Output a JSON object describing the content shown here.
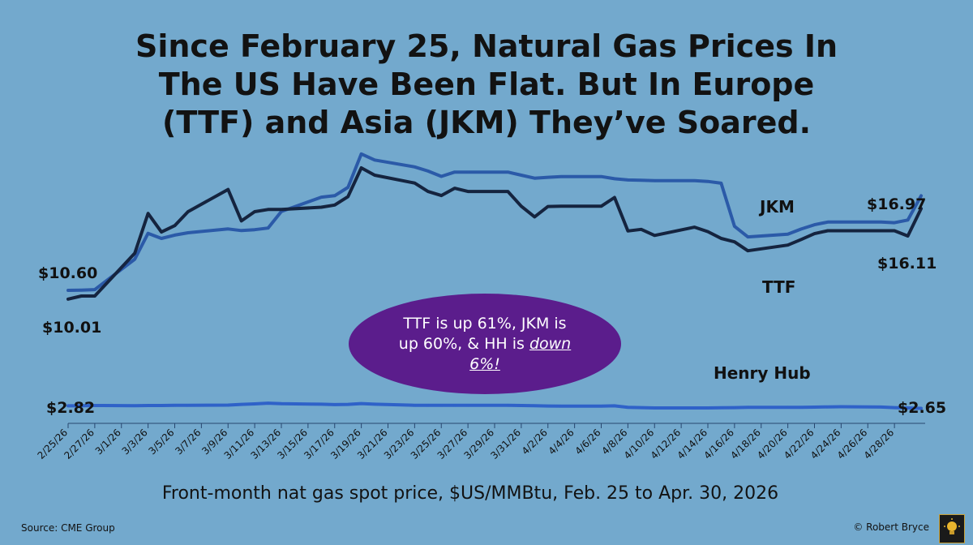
{
  "title_lines": [
    "Since February 25, Natural Gas Prices In",
    "The US Have Been Flat. But In Europe",
    "(TTF) and Asia (JKM) They’ve Soared."
  ],
  "callout": {
    "text": "TTF is up 61%, JKM is up 60%, & HH is",
    "emphasis": "down 6%!",
    "color": "#5b1d8c"
  },
  "footer": {
    "xlabel": "Front-month nat gas spot price, $US/MMBtu, Feb. 25 to Apr. 30, 2026",
    "source": "Source:  CME Group",
    "credit": "© Robert Bryce",
    "logo_icon": "lightbulb-icon"
  },
  "chart_data": {
    "type": "line",
    "title": "Since February 25, Natural Gas Prices In The US Have Been Flat. But In Europe (TTF) and Asia (JKM) They’ve Soared.",
    "xlabel": "Front-month nat gas spot price, $US/MMBtu, Feb. 25 to Apr. 30, 2026",
    "ylabel": "",
    "ylim": [
      0,
      24
    ],
    "grid": false,
    "legend": "inline labels",
    "tick_labels": [
      "2/25/26",
      "2/27/26",
      "3/1/26",
      "3/3/26",
      "3/5/26",
      "3/7/26",
      "3/9/26",
      "3/11/26",
      "3/13/26",
      "3/15/26",
      "3/17/26",
      "3/19/26",
      "3/21/26",
      "3/23/26",
      "3/25/26",
      "3/27/26",
      "3/29/26",
      "3/31/26",
      "4/2/26",
      "4/4/26",
      "4/6/26",
      "4/8/26",
      "4/10/26",
      "4/12/26",
      "4/14/26",
      "4/16/26",
      "4/18/26",
      "4/20/26",
      "4/22/26",
      "4/24/26",
      "4/26/26",
      "4/28/26"
    ],
    "x_start": "2026-02-25",
    "x": [
      "2/25/26",
      "2/26/26",
      "2/27/26",
      "3/2/26",
      "3/3/26",
      "3/4/26",
      "3/5/26",
      "3/6/26",
      "3/9/26",
      "3/10/26",
      "3/11/26",
      "3/12/26",
      "3/13/26",
      "3/16/26",
      "3/17/26",
      "3/18/26",
      "3/19/26",
      "3/20/26",
      "3/23/26",
      "3/24/26",
      "3/25/26",
      "3/26/26",
      "3/27/26",
      "3/30/26",
      "3/31/26",
      "4/1/26",
      "4/2/26",
      "4/3/26",
      "4/6/26",
      "4/7/26",
      "4/8/26",
      "4/9/26",
      "4/10/26",
      "4/13/26",
      "4/14/26",
      "4/15/26",
      "4/16/26",
      "4/17/26",
      "4/20/26",
      "4/21/26",
      "4/22/26",
      "4/23/26",
      "4/24/26",
      "4/27/26",
      "4/28/26",
      "4/29/26",
      "4/30/26"
    ],
    "series": [
      {
        "name": "JKM",
        "color": "#2b5aa8",
        "values": [
          10.6,
          10.62,
          10.65,
          12.7,
          14.44,
          14.1,
          14.32,
          14.48,
          14.74,
          14.63,
          14.69,
          14.8,
          15.91,
          16.88,
          16.98,
          17.54,
          19.79,
          19.38,
          18.92,
          18.64,
          18.28,
          18.57,
          18.57,
          18.57,
          18.36,
          18.16,
          18.22,
          18.27,
          18.27,
          18.12,
          18.04,
          18.02,
          17.99,
          17.99,
          17.94,
          17.82,
          14.91,
          14.2,
          14.38,
          14.73,
          15.02,
          15.2,
          15.2,
          15.2,
          15.16,
          15.34,
          16.97
        ],
        "start_label": "$10.60",
        "end_label": "$16.97"
      },
      {
        "name": "TTF",
        "color": "#15243f",
        "values": [
          10.01,
          10.22,
          10.22,
          13.1,
          15.78,
          14.53,
          14.96,
          15.9,
          17.4,
          15.28,
          15.9,
          16.05,
          16.05,
          16.2,
          16.35,
          16.92,
          18.85,
          18.36,
          17.83,
          17.26,
          16.99,
          17.48,
          17.26,
          17.26,
          16.27,
          15.55,
          16.25,
          16.27,
          16.27,
          16.86,
          14.6,
          14.71,
          14.3,
          14.86,
          14.56,
          14.1,
          13.87,
          13.27,
          13.65,
          14.03,
          14.42,
          14.62,
          14.62,
          14.62,
          14.62,
          14.26,
          16.11
        ],
        "start_label": "$10.01",
        "end_label": "$16.11"
      },
      {
        "name": "Henry Hub",
        "color": "#2f62c8",
        "values": [
          2.82,
          2.83,
          2.84,
          2.83,
          2.84,
          2.84,
          2.85,
          2.86,
          2.87,
          2.92,
          2.95,
          3.0,
          2.96,
          2.93,
          2.9,
          2.92,
          2.97,
          2.93,
          2.86,
          2.85,
          2.85,
          2.86,
          2.86,
          2.86,
          2.84,
          2.83,
          2.81,
          2.8,
          2.8,
          2.82,
          2.72,
          2.7,
          2.68,
          2.68,
          2.68,
          2.69,
          2.7,
          2.72,
          2.72,
          2.72,
          2.73,
          2.75,
          2.76,
          2.74,
          2.7,
          2.68,
          2.65
        ],
        "start_label": "$2.82",
        "end_label": "$2.65"
      }
    ]
  }
}
